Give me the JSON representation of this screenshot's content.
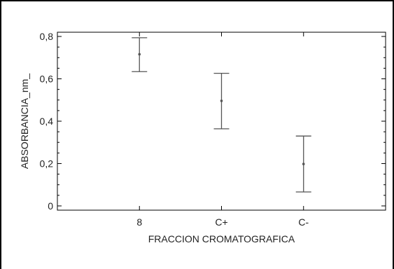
{
  "chart_data": {
    "type": "errorbar",
    "categories": [
      "8",
      "C+",
      "C-"
    ],
    "series": [
      {
        "mean": [
          0.716,
          0.496,
          0.198
        ],
        "lower": [
          0.634,
          0.364,
          0.066
        ],
        "upper": [
          0.794,
          0.626,
          0.33
        ]
      }
    ],
    "xlabel": "FRACCION CROMATOGRAFICA",
    "ylabel": "ABSORBANCIA_nm_",
    "ylim": [
      -0.02,
      0.82
    ],
    "yticks": [
      "0",
      "0,2",
      "0,4",
      "0,6",
      "0,8"
    ],
    "ytick_values": [
      0,
      0.2,
      0.4,
      0.6,
      0.8
    ],
    "grid": false,
    "colors": {
      "mark": "#555555",
      "axis": "#000000",
      "text": "#222222"
    }
  }
}
